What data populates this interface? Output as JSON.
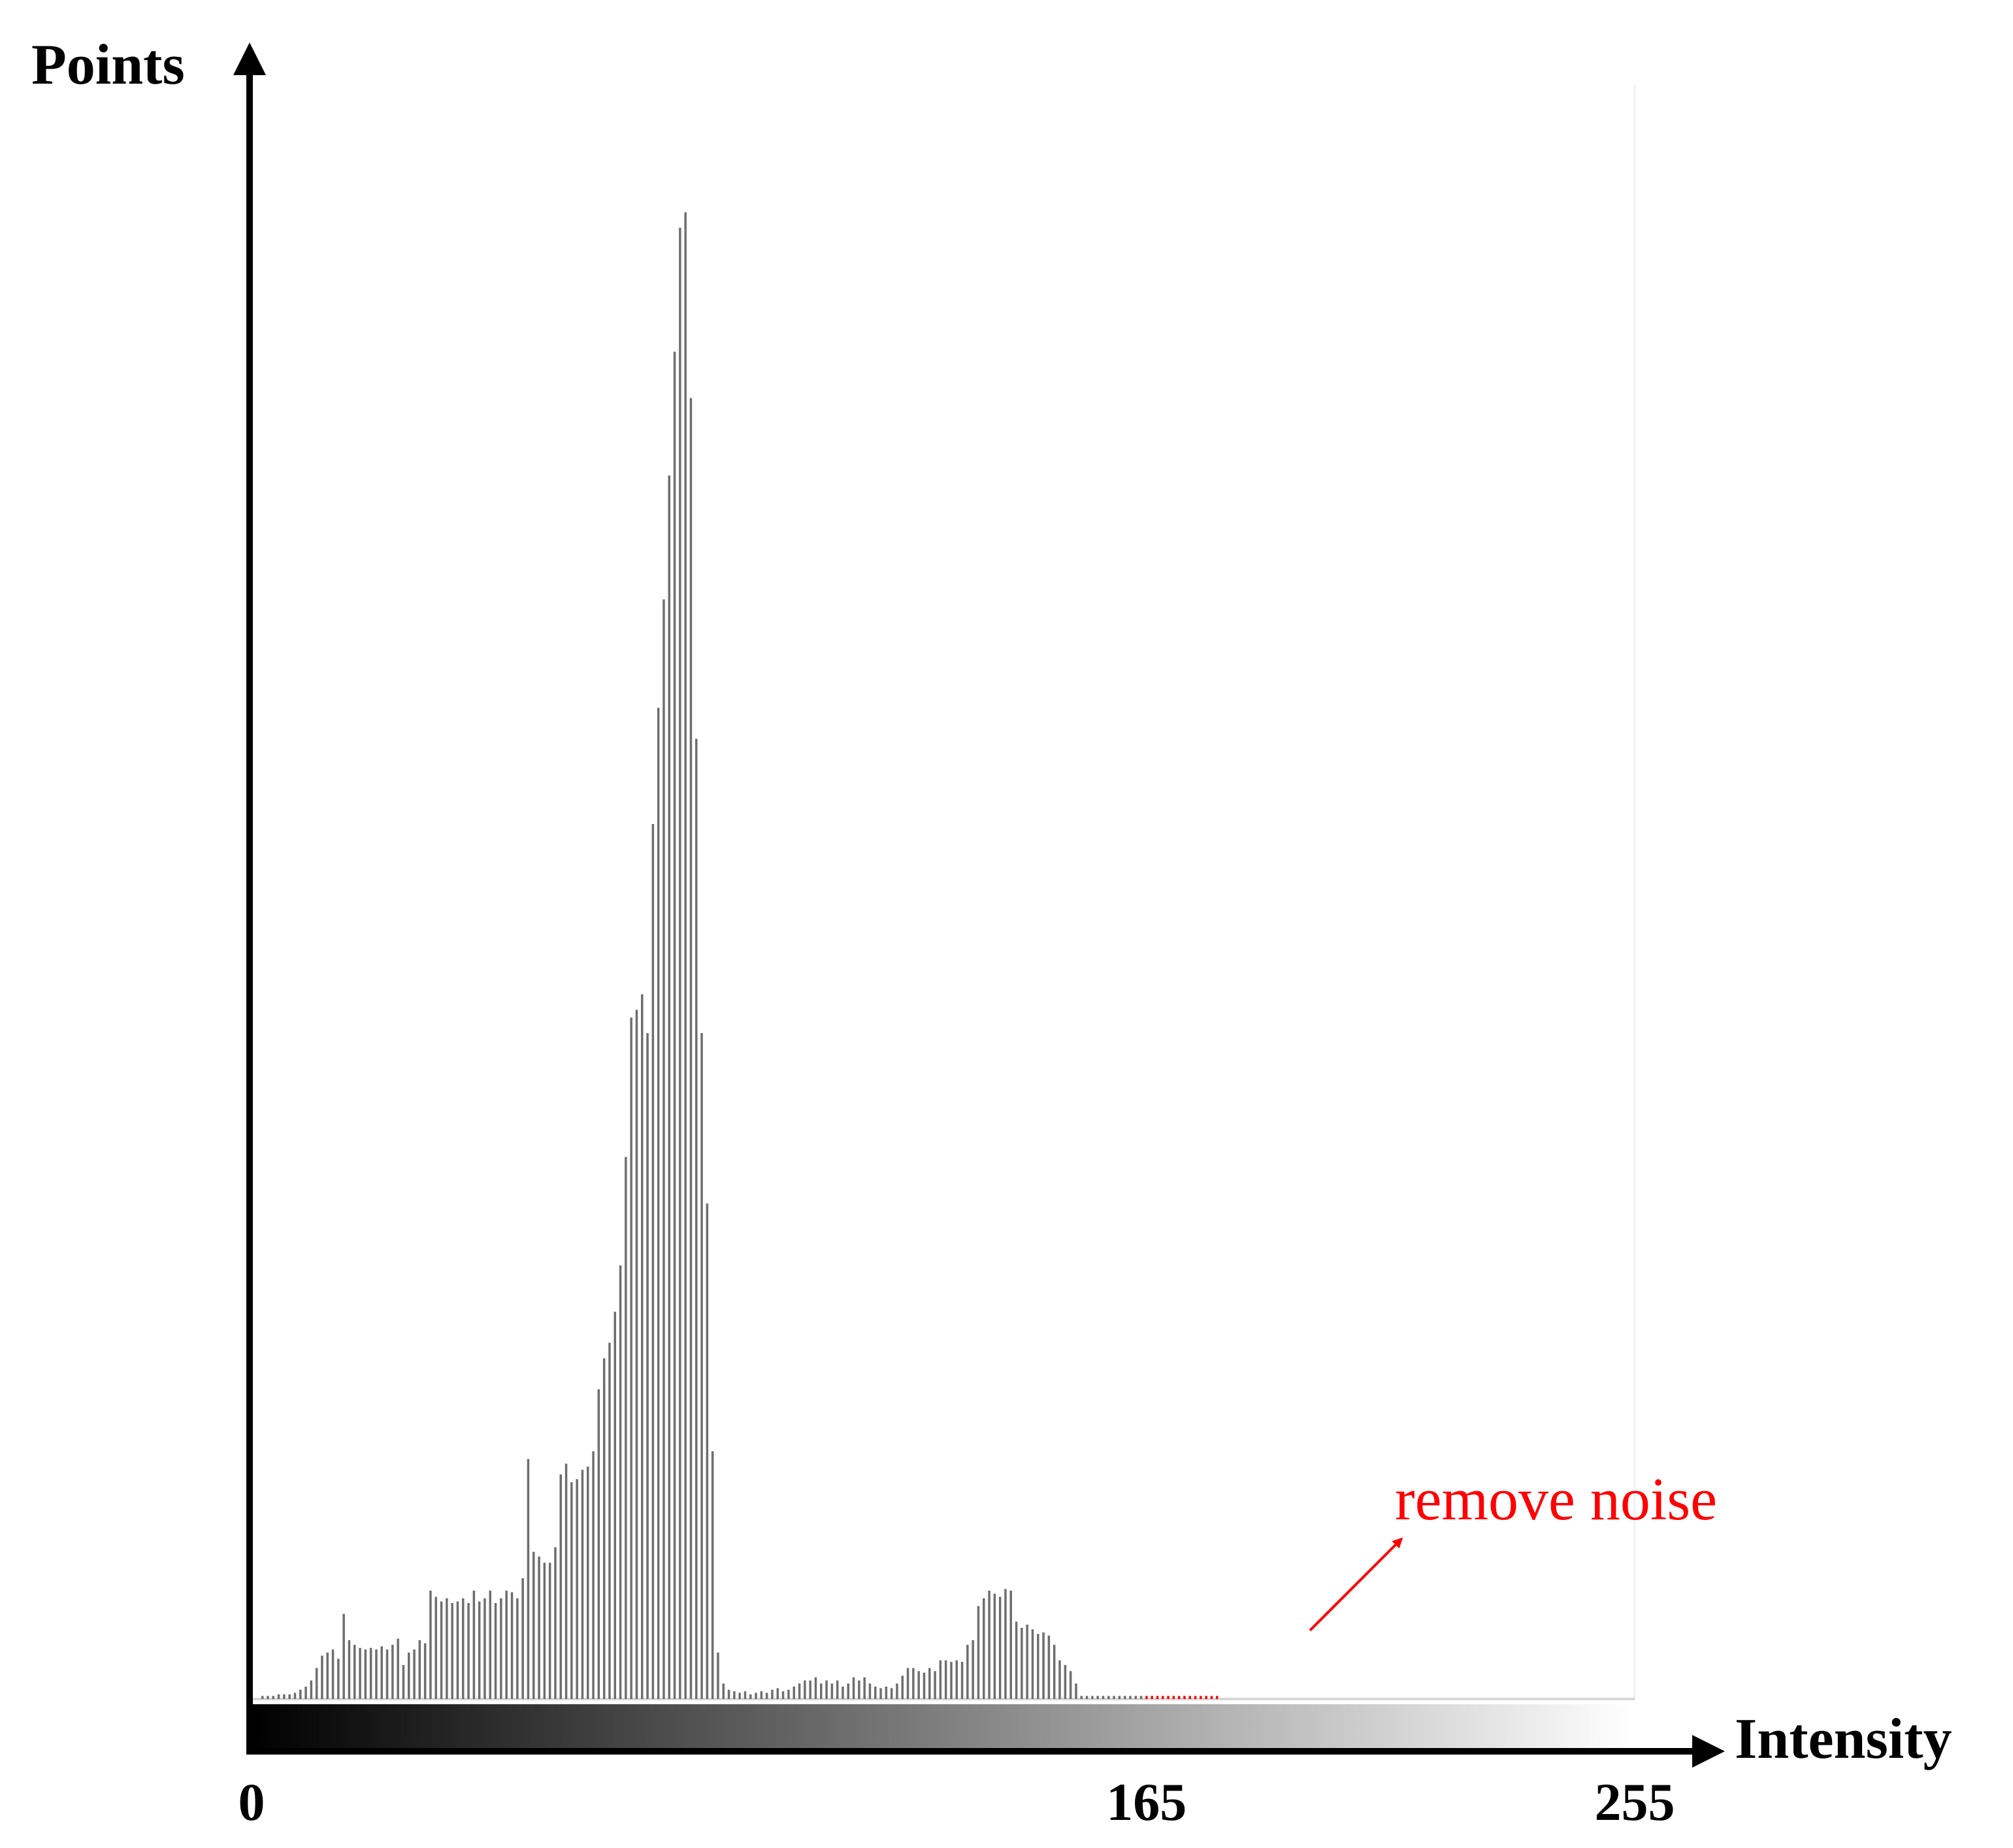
{
  "chart_data": {
    "type": "bar",
    "title": "",
    "ylabel": "Points",
    "xlabel": "Intensity",
    "xlim": [
      0,
      255
    ],
    "ylim": [
      0,
      1000
    ],
    "x_tick_labels": [
      "0",
      "165",
      "255"
    ],
    "x_ticks": [
      0,
      165,
      255
    ],
    "grid": false,
    "colors": {
      "bar": "#6e6e6e",
      "noise": "#ff0000",
      "axis": "#000000",
      "annotation": "#ff0000"
    },
    "noise_threshold": 165,
    "annotation": {
      "text": "remove noise"
    },
    "series": [
      {
        "x": [
          2,
          3,
          4,
          5,
          6,
          7,
          8,
          9,
          10,
          11,
          12,
          13,
          14,
          15,
          16,
          17,
          18,
          19,
          20,
          21,
          22,
          23,
          24,
          25,
          26,
          27,
          28,
          29,
          30,
          31,
          32,
          33,
          34,
          35,
          36,
          37,
          38,
          39,
          40,
          41,
          42,
          43,
          44,
          45,
          46,
          47,
          48,
          49,
          50,
          51,
          52,
          53,
          54,
          55,
          56,
          57,
          58,
          59,
          60,
          61,
          62,
          63,
          64,
          65,
          66,
          67,
          68,
          69,
          70,
          71,
          72,
          73,
          74,
          75,
          76,
          77,
          78,
          79,
          80,
          81,
          82,
          83,
          84,
          85,
          86,
          87,
          88,
          89,
          90,
          91,
          92,
          93,
          94,
          95,
          96,
          97,
          98,
          99,
          100,
          101,
          102,
          103,
          104,
          105,
          106,
          107,
          108,
          109,
          110,
          111,
          112,
          113,
          114,
          115,
          116,
          117,
          118,
          119,
          120,
          121,
          122,
          123,
          124,
          125,
          126,
          127,
          128,
          129,
          130,
          131,
          132,
          133,
          134,
          135,
          136,
          137,
          138,
          139,
          140,
          141,
          142,
          143,
          144,
          145,
          146,
          147,
          148,
          149,
          150,
          151,
          152,
          153,
          154,
          155,
          156,
          157,
          158,
          159,
          160,
          161,
          162,
          163,
          164,
          165,
          166,
          167,
          168,
          169,
          170,
          171,
          172,
          173,
          174,
          175,
          176,
          177,
          178
        ],
        "values": [
          2,
          2,
          2,
          3,
          3,
          3,
          4,
          6,
          8,
          12,
          20,
          28,
          30,
          32,
          26,
          55,
          38,
          35,
          33,
          32,
          33,
          32,
          34,
          32,
          35,
          39,
          22,
          30,
          32,
          38,
          36,
          70,
          66,
          63,
          65,
          62,
          63,
          65,
          62,
          70,
          63,
          65,
          70,
          62,
          65,
          70,
          69,
          65,
          78,
          155,
          95,
          92,
          88,
          88,
          98,
          145,
          152,
          140,
          142,
          148,
          150,
          160,
          200,
          220,
          230,
          250,
          280,
          350,
          440,
          445,
          455,
          430,
          565,
          640,
          710,
          790,
          870,
          950,
          960,
          840,
          620,
          430,
          320,
          160,
          30,
          10,
          6,
          5,
          4,
          5,
          3,
          4,
          5,
          4,
          6,
          7,
          5,
          6,
          8,
          10,
          12,
          12,
          14,
          10,
          12,
          10,
          12,
          8,
          10,
          14,
          12,
          14,
          10,
          8,
          7,
          8,
          7,
          10,
          15,
          20,
          20,
          18,
          17,
          20,
          18,
          25,
          25,
          24,
          25,
          24,
          35,
          38,
          60,
          65,
          70,
          68,
          66,
          71,
          70,
          50,
          46,
          48,
          45,
          42,
          43,
          41,
          35,
          25,
          22,
          18,
          10,
          2,
          2,
          2,
          2,
          2,
          2,
          2,
          2,
          2,
          2,
          2,
          2,
          2,
          2,
          2,
          2,
          2,
          2,
          2,
          2,
          2,
          2,
          2,
          2,
          2,
          2
        ]
      }
    ]
  }
}
